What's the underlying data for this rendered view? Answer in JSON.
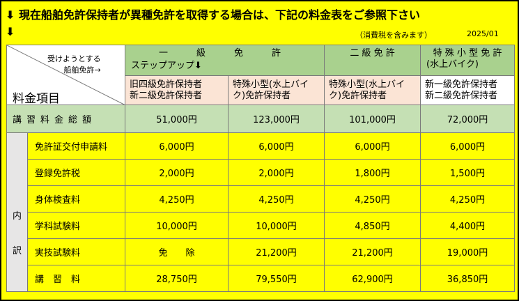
{
  "header": {
    "line1": "⬇ 現在船舶免許保持者が異種免許を取得する場合は、下記の料金表をご参照下さい",
    "line2": "⬇",
    "tax_note": "（消費税を含みます）",
    "date": "2025/01"
  },
  "table": {
    "corner_accept_line1": "受けようとする",
    "corner_accept_line2": "船舶免許→",
    "corner_item_label": "料金項目",
    "columns": [
      {
        "title": "一　級　免　許",
        "note": "ステップアップ⬇"
      },
      {
        "title": "二 級 免 許"
      },
      {
        "title": "特 殊 小 型 免 許",
        "subtitle": "(水上バイク)"
      }
    ],
    "holders": [
      [
        "旧四級免許保持者",
        "新二級免許保持者"
      ],
      [
        "特殊小型(水上バイ",
        "ク)免許保持者"
      ],
      [
        "特殊小型(水上バイ",
        "ク)免許保持者"
      ],
      [
        "新一級免許保持者",
        "新二級免許保持者"
      ]
    ],
    "total": {
      "label": "講習料金総額",
      "values": [
        "51,000円",
        "123,000円",
        "101,000円",
        "72,000円"
      ]
    },
    "breakdown_label_1": "内",
    "breakdown_label_2": "訳",
    "rows": [
      {
        "label": "免許証交付申請料",
        "values": [
          "6,000円",
          "6,000円",
          "6,000円",
          "6,000円"
        ]
      },
      {
        "label": "登録免許税",
        "values": [
          "2,000円",
          "2,000円",
          "1,800円",
          "1,500円"
        ]
      },
      {
        "label": "身体検査料",
        "values": [
          "4,250円",
          "4,250円",
          "4,250円",
          "4,250円"
        ]
      },
      {
        "label": "学科試験料",
        "values": [
          "10,000円",
          "10,000円",
          "4,850円",
          "4,400円"
        ]
      },
      {
        "label": "実技試験料",
        "values": [
          "免　　除",
          "21,200円",
          "21,200円",
          "19,000円"
        ]
      },
      {
        "label": "講　習　料",
        "values": [
          "28,750円",
          "79,550円",
          "62,900円",
          "36,850円"
        ]
      }
    ]
  },
  "colors": {
    "frame": "#ffff00",
    "header_green": "#a9d18e",
    "holder_pink": "#fbe4d5",
    "total_green": "#c5e0b4",
    "side_grey": "#e7e6e6"
  }
}
